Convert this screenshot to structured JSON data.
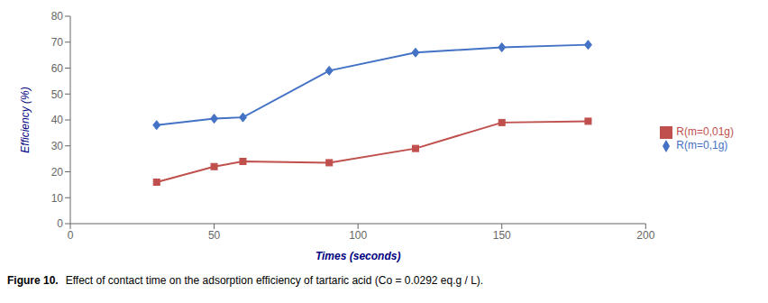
{
  "chart_data": {
    "type": "line",
    "title": "Figure 10.",
    "subtitle": "Effect of contact time on the adsorption efficiency of tartaric acid (Co = 0.0292 eq.g / L).",
    "x_label": "Times (seconds)",
    "y_label": "Efficiency (%)",
    "x": [
      30,
      50,
      60,
      90,
      120,
      150,
      180
    ],
    "series": [
      {
        "name": "R(m=0,1g)",
        "color": "#4472C4",
        "marker": "diamond",
        "line_style": "solid",
        "values": [
          38,
          40.5,
          41,
          59,
          66,
          68,
          69
        ]
      },
      {
        "name": "R(m=0,01g)",
        "color": "#C0504D",
        "marker": "square",
        "line_style": "solid",
        "values": [
          16,
          22,
          24,
          23.5,
          29,
          39,
          39.5
        ]
      }
    ],
    "xlim": [
      0,
      200
    ],
    "ylim": [
      0,
      80
    ],
    "xticks": [
      0,
      50,
      100,
      150,
      200
    ],
    "yticks": [
      0,
      10,
      20,
      30,
      40,
      50,
      60,
      70,
      80
    ],
    "grid": false,
    "legend": "right"
  }
}
